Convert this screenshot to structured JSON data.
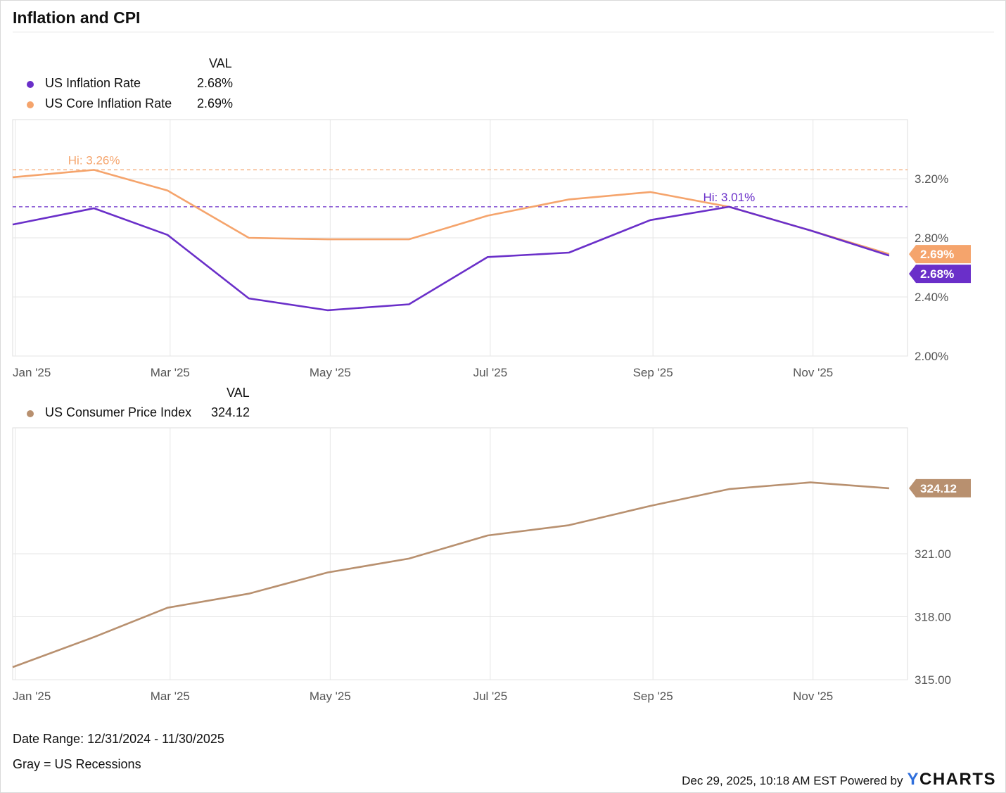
{
  "title": "Inflation and CPI",
  "panel1": {
    "val_header": "VAL",
    "legend": [
      {
        "name": "US Inflation Rate",
        "value": "2.68%",
        "color": "#6a2fc9"
      },
      {
        "name": "US Core Inflation Rate",
        "value": "2.69%",
        "color": "#f5a46c"
      }
    ],
    "hi_labels": [
      {
        "text": "Hi: 3.26%",
        "color": "#f5a46c"
      },
      {
        "text": "Hi: 3.01%",
        "color": "#6a2fc9"
      }
    ],
    "end_badges": [
      "2.69%",
      "2.68%"
    ]
  },
  "panel2": {
    "val_header": "VAL",
    "legend": [
      {
        "name": "US Consumer Price Index",
        "value": "324.12",
        "color": "#b8906f"
      }
    ],
    "end_badges": [
      "324.12"
    ]
  },
  "footer": {
    "date_range": "Date Range: 12/31/2024 - 11/30/2025",
    "recessions": "Gray = US Recessions",
    "timestamp": "Dec 29, 2025, 10:18 AM EST Powered by",
    "logo": "YCHARTS"
  },
  "chart_data": [
    {
      "type": "line",
      "x": [
        "2024-12-31",
        "2025-01-31",
        "2025-02-28",
        "2025-03-31",
        "2025-04-30",
        "2025-05-31",
        "2025-06-30",
        "2025-07-31",
        "2025-08-31",
        "2025-09-30",
        "2025-10-31",
        "2025-11-30"
      ],
      "x_tick_labels": [
        "Jan '25",
        "Mar '25",
        "May '25",
        "Jul '25",
        "Sep '25",
        "Nov '25"
      ],
      "y_tick_labels": [
        "3.20%",
        "2.80%",
        "2.40%",
        "2.00%"
      ],
      "ylim": [
        2.0,
        3.6
      ],
      "y_ticks": [
        2.0,
        2.4,
        2.8,
        3.2
      ],
      "series": [
        {
          "name": "US Inflation Rate",
          "color": "#6a2fc9",
          "values": [
            2.89,
            3.0,
            2.82,
            2.39,
            2.31,
            2.35,
            2.67,
            2.7,
            2.92,
            3.01,
            2.85,
            2.68
          ]
        },
        {
          "name": "US Core Inflation Rate",
          "color": "#f5a46c",
          "values": [
            3.21,
            3.26,
            3.12,
            2.8,
            2.79,
            2.79,
            2.95,
            3.06,
            3.11,
            3.01,
            2.85,
            2.69
          ]
        }
      ],
      "annotations": [
        {
          "text": "Hi: 3.26%",
          "value": 3.26,
          "series": "US Core Inflation Rate"
        },
        {
          "text": "Hi: 3.01%",
          "value": 3.01,
          "series": "US Inflation Rate"
        }
      ],
      "grid": true
    },
    {
      "type": "line",
      "x": [
        "2024-12-31",
        "2025-01-31",
        "2025-02-28",
        "2025-03-31",
        "2025-04-30",
        "2025-05-31",
        "2025-06-30",
        "2025-07-31",
        "2025-08-31",
        "2025-09-30",
        "2025-10-31",
        "2025-11-30"
      ],
      "x_tick_labels": [
        "Jan '25",
        "Mar '25",
        "May '25",
        "Jul '25",
        "Sep '25",
        "Nov '25"
      ],
      "y_tick_labels": [
        "321.00",
        "318.00",
        "315.00"
      ],
      "ylim": [
        315.0,
        327.0
      ],
      "y_ticks": [
        315.0,
        318.0,
        321.0
      ],
      "series": [
        {
          "name": "US Consumer Price Index",
          "color": "#b8906f",
          "values": [
            315.6,
            317.03,
            318.43,
            319.1,
            320.11,
            320.77,
            321.87,
            322.36,
            323.28,
            324.08,
            324.4,
            324.12
          ]
        }
      ],
      "grid": true
    }
  ]
}
